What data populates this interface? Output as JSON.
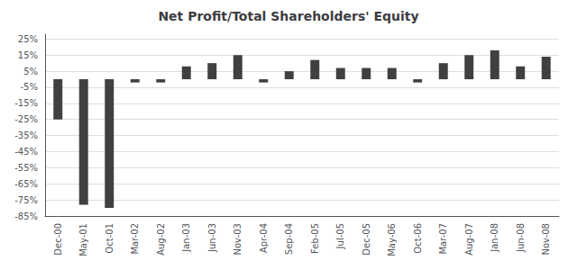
{
  "chart_data": {
    "type": "bar",
    "title": "Net Profit/Total Shareholders' Equity",
    "categories": [
      "Dec-00",
      "May-01",
      "Oct-01",
      "Mar-02",
      "Aug-02",
      "Jan-03",
      "Jun-03",
      "Nov-03",
      "Apr-04",
      "Sep-04",
      "Feb-05",
      "Jul-05",
      "Dec-05",
      "May-06",
      "Oct-06",
      "Mar-07",
      "Aug-07",
      "Jan-08",
      "Jun-08",
      "Nov-08"
    ],
    "values": [
      -25,
      -78,
      -80,
      -2,
      -2,
      8,
      10,
      15,
      -2,
      5,
      12,
      7,
      7,
      7,
      -2,
      10,
      15,
      18,
      8,
      14
    ],
    "color": "#404040",
    "ylim": [
      -85,
      28
    ],
    "yticks": [
      {
        "value": 25,
        "label": "25%"
      },
      {
        "value": 15,
        "label": "15%"
      },
      {
        "value": 5,
        "label": "5%"
      },
      {
        "value": -5,
        "label": "-5%"
      },
      {
        "value": -15,
        "label": "-15%"
      },
      {
        "value": -25,
        "label": "-25%"
      },
      {
        "value": -35,
        "label": "-35%"
      },
      {
        "value": -45,
        "label": "-45%"
      },
      {
        "value": -55,
        "label": "-55%"
      },
      {
        "value": -65,
        "label": "-65%"
      },
      {
        "value": -75,
        "label": "-75%"
      },
      {
        "value": -85,
        "label": "-85%"
      }
    ],
    "grid": true
  }
}
